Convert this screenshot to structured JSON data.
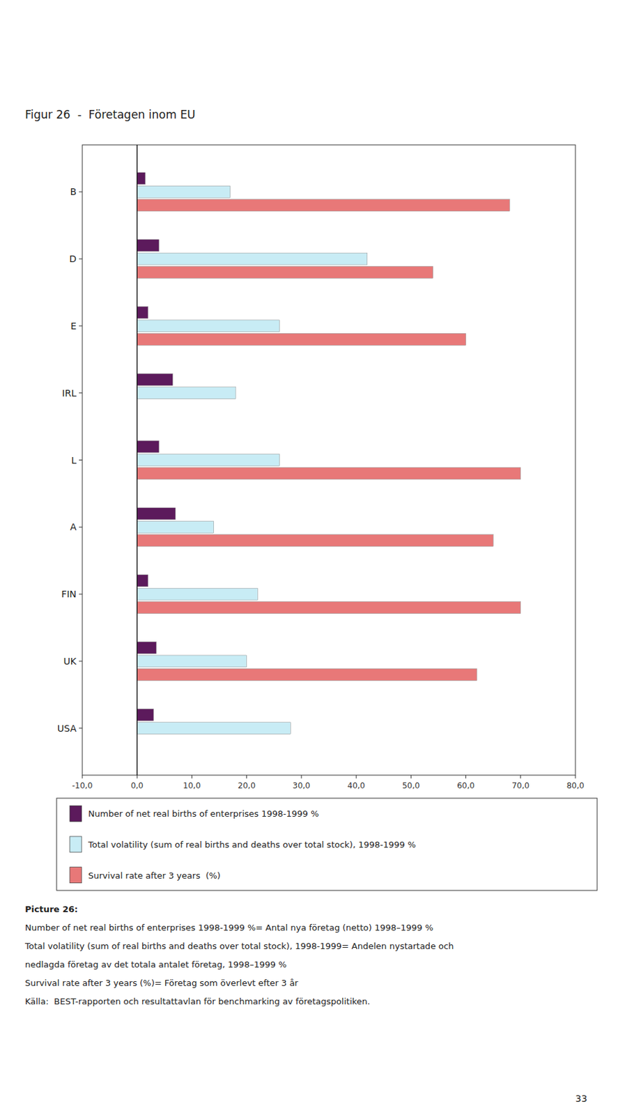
{
  "chart_data": {
    "type": "bar",
    "orientation": "horizontal",
    "title": "Figur 26  -  Företagen inom EU",
    "categories": [
      "USA",
      "UK",
      "FIN",
      "A",
      "L",
      "IRL",
      "E",
      "D",
      "B"
    ],
    "series": [
      {
        "name": "Number of net real births of enterprises 1998-1999 %",
        "color": "#5c1a5c",
        "values": [
          3.0,
          3.5,
          2.0,
          7.0,
          4.0,
          6.5,
          2.0,
          4.0,
          1.5
        ]
      },
      {
        "name": "Total volatility (sum of real births and deaths over total stock), 1998-1999 %",
        "color": "#c8ecf5",
        "values": [
          28.0,
          20.0,
          22.0,
          14.0,
          26.0,
          18.0,
          26.0,
          42.0,
          17.0
        ]
      },
      {
        "name": "Survival rate after 3 years  (%)",
        "color": "#e87878",
        "values": [
          null,
          62.0,
          70.0,
          65.0,
          70.0,
          null,
          60.0,
          54.0,
          68.0
        ]
      }
    ],
    "xlim": [
      -10,
      80
    ],
    "xticks": [
      {
        "value": -10,
        "label": "-10,0"
      },
      {
        "value": 0,
        "label": "0,0"
      },
      {
        "value": 10,
        "label": "10,0"
      },
      {
        "value": 20,
        "label": "20,0"
      },
      {
        "value": 30,
        "label": "30,0"
      },
      {
        "value": 40,
        "label": "40,0"
      },
      {
        "value": 50,
        "label": "50,0"
      },
      {
        "value": 60,
        "label": "60,0"
      },
      {
        "value": 70,
        "label": "70,0"
      },
      {
        "value": 80,
        "label": "80,0"
      }
    ],
    "grid": false,
    "annotations": [
      "Picture 26:",
      "Number of net real births of enterprises 1998-1999 %= Antal nya företag (netto) 1998–1999 %",
      "Total volatility (sum of real births and deaths over total stock), 1998-1999= Andelen nystartade och",
      "nedlagda företag av det totala antalet företag, 1998–1999 %",
      "Survival rate after 3 years (%)= Företag som överlevt efter 3 år",
      "Källa:  BEST-rapporten och resultattavlan för benchmarking av företagspolitiken.",
      "33"
    ]
  }
}
